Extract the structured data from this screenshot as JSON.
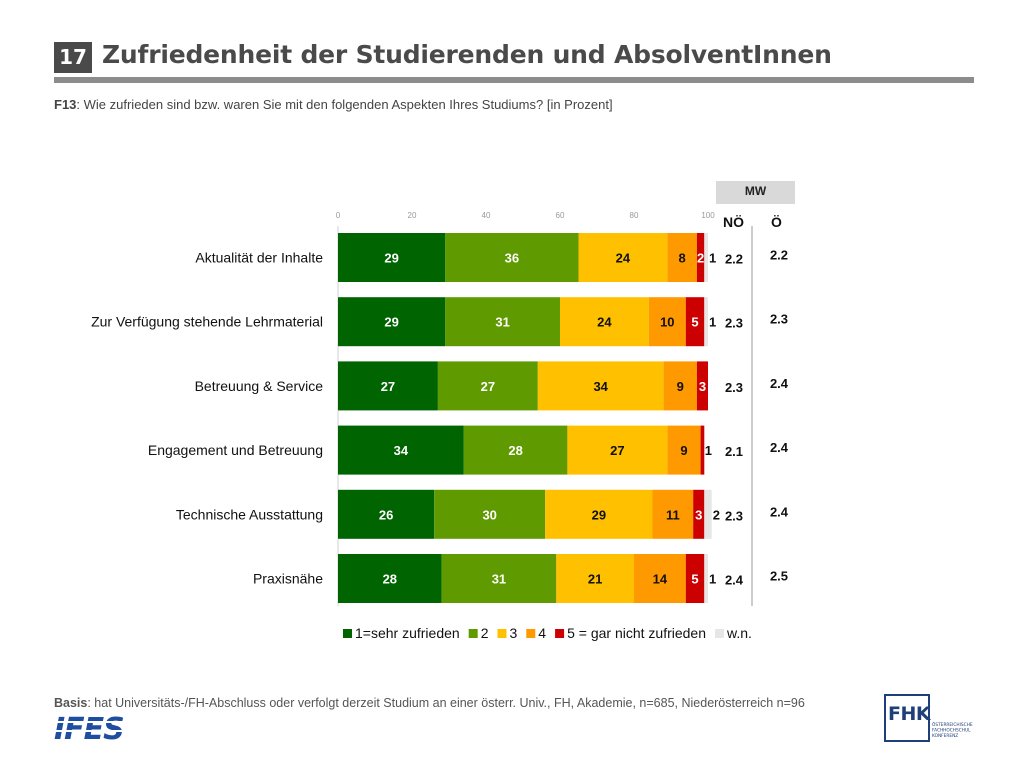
{
  "slide": {
    "number": "17",
    "title": "Zufriedenheit der Studierenden und AbsolventInnen",
    "question_code": "F13",
    "question_text": ": Wie zufrieden sind bzw. waren Sie mit den folgenden Aspekten Ihres Studiums? [in Prozent]",
    "basis_label": "Basis",
    "basis_text": ": hat Universitäts-/FH-Abschluss oder verfolgt derzeit Studium an einer österr. Univ., FH, Akademie, n=685, Niederösterreich n=96"
  },
  "mw": {
    "header": "MW",
    "col_noe": "NÖ",
    "col_oe": "Ö"
  },
  "logos": {
    "ifes": "IFES",
    "fhk": "FHK",
    "fhk_sub": [
      "ÖSTERREICHISCHE",
      "FACHHOCHSCHUL",
      "KONFERENZ"
    ]
  },
  "colors": {
    "s1": "#006400",
    "s2": "#5f9a00",
    "s3": "#ffc000",
    "s4": "#ff9900",
    "s5": "#cc0000",
    "wn": "#e6e6e6"
  },
  "chart_data": {
    "type": "bar",
    "orientation": "horizontal-stacked",
    "xlim": [
      0,
      100
    ],
    "xticks": [
      "0",
      "20",
      "40",
      "60",
      "80",
      "100"
    ],
    "categories": [
      "Aktualität der Inhalte",
      "Zur Verfügung stehende Lehrmaterial",
      "Betreuung & Service",
      "Engagement und Betreuung",
      "Technische Ausstattung",
      "Praxisnähe"
    ],
    "series": [
      {
        "name": "1=sehr zufrieden",
        "color": "#006400",
        "values": [
          29,
          29,
          27,
          34,
          26,
          28
        ]
      },
      {
        "name": "2",
        "color": "#5f9a00",
        "values": [
          36,
          31,
          27,
          28,
          30,
          31
        ]
      },
      {
        "name": "3",
        "color": "#ffc000",
        "values": [
          24,
          24,
          34,
          27,
          29,
          21
        ]
      },
      {
        "name": "4",
        "color": "#ff9900",
        "values": [
          8,
          10,
          9,
          9,
          11,
          14
        ]
      },
      {
        "name": "5 = gar nicht zufrieden",
        "color": "#cc0000",
        "values": [
          2,
          5,
          3,
          1,
          3,
          5
        ]
      },
      {
        "name": "w.n.",
        "color": "#e6e6e6",
        "values": [
          1,
          1,
          0,
          0,
          2,
          1
        ]
      }
    ],
    "legend_position": "bottom",
    "mw_noe": [
      "2.2",
      "2.3",
      "2.3",
      "2.1",
      "2.3",
      "2.4"
    ],
    "mw_oe": [
      "2.2",
      "2.3",
      "2.4",
      "2.4",
      "2.4",
      "2.5"
    ]
  }
}
